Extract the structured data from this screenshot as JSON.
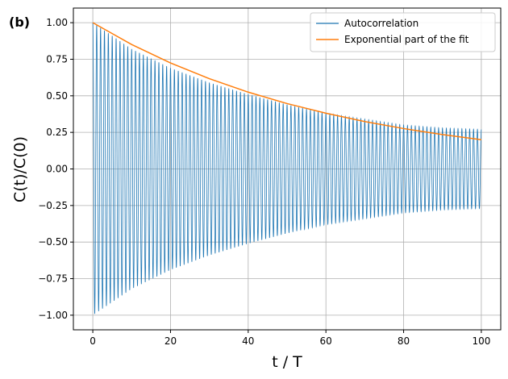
{
  "chart_data": {
    "type": "line",
    "panel_label": "(b)",
    "xlabel": "t / T",
    "ylabel": "C(t)/C(0)",
    "xlim": [
      -5,
      105
    ],
    "ylim": [
      -1.1,
      1.1
    ],
    "xticks": [
      0,
      20,
      40,
      60,
      80,
      100
    ],
    "yticks": [
      -1.0,
      -0.75,
      -0.5,
      -0.25,
      0.0,
      0.25,
      0.5,
      0.75,
      1.0
    ],
    "xtick_labels": [
      "0",
      "20",
      "40",
      "60",
      "80",
      "100"
    ],
    "ytick_labels": [
      "−1.00",
      "−0.75",
      "−0.50",
      "−0.25",
      "0.00",
      "0.25",
      "0.50",
      "0.75",
      "1.00"
    ],
    "grid": true,
    "legend_position": "top-right",
    "series": [
      {
        "name": "Autocorrelation",
        "color": "#1f77b4",
        "function": "damped cosine, period 1, decaying envelope",
        "x": [
          0,
          10,
          20,
          30,
          40,
          50,
          60,
          70,
          80,
          90,
          100
        ],
        "envelope": [
          1.0,
          0.82,
          0.69,
          0.59,
          0.51,
          0.44,
          0.38,
          0.34,
          0.3,
          0.28,
          0.27
        ],
        "oscillations_per_unit": 1
      },
      {
        "name": "Exponential part of the fit",
        "color": "#ff7f0e",
        "x": [
          0,
          10,
          20,
          30,
          40,
          50,
          60,
          70,
          80,
          90,
          100
        ],
        "y": [
          1.0,
          0.851,
          0.725,
          0.617,
          0.525,
          0.447,
          0.381,
          0.324,
          0.276,
          0.235,
          0.2
        ]
      }
    ]
  }
}
